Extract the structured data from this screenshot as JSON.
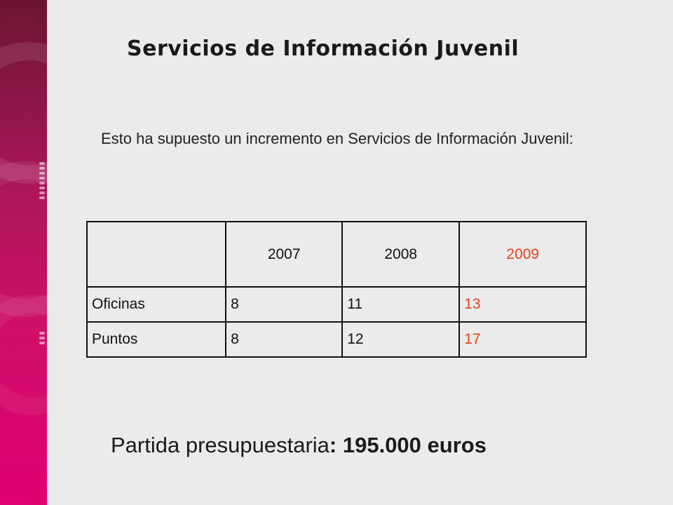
{
  "slide": {
    "title": "Servicios de Información Juvenil",
    "intro": "Esto ha supuesto un incremento en Servicios de Información Juvenil:",
    "table": {
      "columns": [
        "",
        "2007",
        "2008",
        "2009"
      ],
      "rows": [
        {
          "label": "Oficinas",
          "values": [
            "8",
            "11",
            "13"
          ]
        },
        {
          "label": "Puntos",
          "values": [
            "8",
            "12",
            "17"
          ]
        }
      ]
    },
    "budget": {
      "label": "Partida presupuestaria",
      "separator": ": ",
      "amount": "195.000 euros"
    },
    "colors": {
      "accent": "#e8411b",
      "band_top": "#6b1432",
      "band_bottom": "#e0006f"
    }
  }
}
